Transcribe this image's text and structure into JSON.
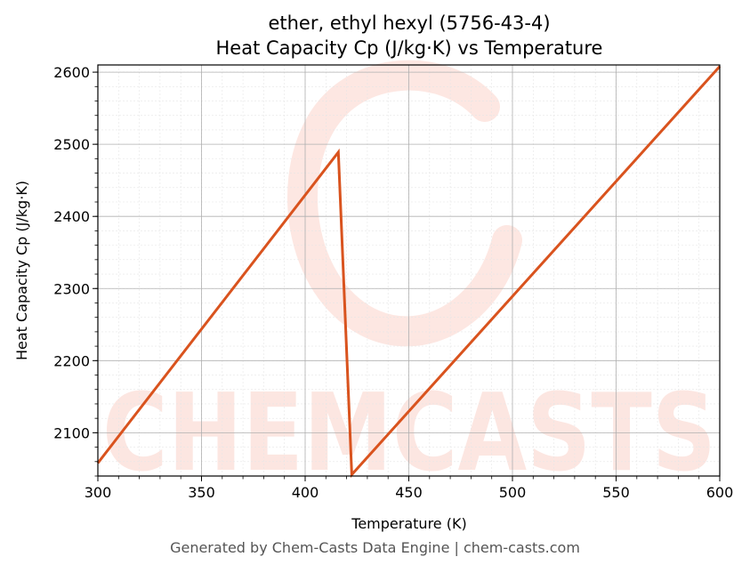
{
  "chart_data": {
    "type": "line",
    "title": "ether, ethyl hexyl (5756-43-4)",
    "subtitle": "Heat Capacity Cp (J/kg·K) vs Temperature",
    "xlabel": "Temperature (K)",
    "ylabel": "Heat Capacity Cp (J/kg·K)",
    "xlim": [
      300,
      600
    ],
    "ylim": [
      2040,
      2610
    ],
    "x_ticks": [
      300,
      350,
      400,
      450,
      500,
      550,
      600
    ],
    "y_ticks": [
      2100,
      2200,
      2300,
      2400,
      2500,
      2600
    ],
    "grid": true,
    "series": [
      {
        "color": "#d9531e",
        "x": [
          300,
          416,
          422.5,
          600
        ],
        "y": [
          2058,
          2489,
          2042,
          2608
        ]
      }
    ]
  },
  "watermark": "CHEMCASTS",
  "footer": "Generated by Chem-Casts Data Engine | chem-casts.com"
}
